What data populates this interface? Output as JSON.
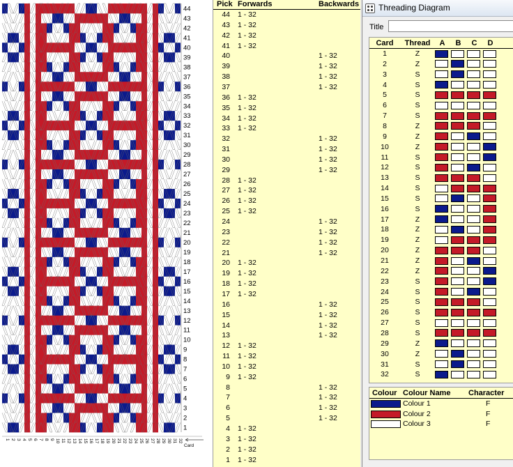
{
  "colors": {
    "navy": "#0b1a8c",
    "red": "#c41a28",
    "white": "#ffffff",
    "panel_bg": "#ffffc8"
  },
  "weave": {
    "row_labels": [
      "44",
      "43",
      "42",
      "41",
      "40",
      "39",
      "38",
      "37",
      "36",
      "35",
      "34",
      "33",
      "32",
      "31",
      "30",
      "29",
      "28",
      "27",
      "26",
      "25",
      "24",
      "23",
      "22",
      "21",
      "20",
      "19",
      "18",
      "17",
      "16",
      "15",
      "14",
      "13",
      "12",
      "11",
      "10",
      "9",
      "8",
      "7",
      "6",
      "5",
      "4",
      "3",
      "2",
      "1"
    ],
    "card_labels": [
      "1",
      "2",
      "3",
      "4",
      "5",
      "6",
      "7",
      "8",
      "9",
      "10",
      "11",
      "12",
      "13",
      "14",
      "15",
      "16",
      "17",
      "18",
      "19",
      "20",
      "21",
      "22",
      "23",
      "24",
      "25",
      "26",
      "27",
      "28",
      "29",
      "30",
      "31",
      "32"
    ],
    "card_axis_label": "Card"
  },
  "turning": {
    "headers": {
      "pick": "Pick",
      "forwards": "Forwards",
      "backwards": "Backwards"
    },
    "rows": [
      {
        "pick": "44",
        "forwards": "1 - 32",
        "backwards": ""
      },
      {
        "pick": "43",
        "forwards": "1 - 32",
        "backwards": ""
      },
      {
        "pick": "42",
        "forwards": "1 - 32",
        "backwards": ""
      },
      {
        "pick": "41",
        "forwards": "1 - 32",
        "backwards": ""
      },
      {
        "pick": "40",
        "forwards": "",
        "backwards": "1 - 32"
      },
      {
        "pick": "39",
        "forwards": "",
        "backwards": "1 - 32"
      },
      {
        "pick": "38",
        "forwards": "",
        "backwards": "1 - 32"
      },
      {
        "pick": "37",
        "forwards": "",
        "backwards": "1 - 32"
      },
      {
        "pick": "36",
        "forwards": "1 - 32",
        "backwards": ""
      },
      {
        "pick": "35",
        "forwards": "1 - 32",
        "backwards": ""
      },
      {
        "pick": "34",
        "forwards": "1 - 32",
        "backwards": ""
      },
      {
        "pick": "33",
        "forwards": "1 - 32",
        "backwards": ""
      },
      {
        "pick": "32",
        "forwards": "",
        "backwards": "1 - 32"
      },
      {
        "pick": "31",
        "forwards": "",
        "backwards": "1 - 32"
      },
      {
        "pick": "30",
        "forwards": "",
        "backwards": "1 - 32"
      },
      {
        "pick": "29",
        "forwards": "",
        "backwards": "1 - 32"
      },
      {
        "pick": "28",
        "forwards": "1 - 32",
        "backwards": ""
      },
      {
        "pick": "27",
        "forwards": "1 - 32",
        "backwards": ""
      },
      {
        "pick": "26",
        "forwards": "1 - 32",
        "backwards": ""
      },
      {
        "pick": "25",
        "forwards": "1 - 32",
        "backwards": ""
      },
      {
        "pick": "24",
        "forwards": "",
        "backwards": "1 - 32"
      },
      {
        "pick": "23",
        "forwards": "",
        "backwards": "1 - 32"
      },
      {
        "pick": "22",
        "forwards": "",
        "backwards": "1 - 32"
      },
      {
        "pick": "21",
        "forwards": "",
        "backwards": "1 - 32"
      },
      {
        "pick": "20",
        "forwards": "1 - 32",
        "backwards": ""
      },
      {
        "pick": "19",
        "forwards": "1 - 32",
        "backwards": ""
      },
      {
        "pick": "18",
        "forwards": "1 - 32",
        "backwards": ""
      },
      {
        "pick": "17",
        "forwards": "1 - 32",
        "backwards": ""
      },
      {
        "pick": "16",
        "forwards": "",
        "backwards": "1 - 32"
      },
      {
        "pick": "15",
        "forwards": "",
        "backwards": "1 - 32"
      },
      {
        "pick": "14",
        "forwards": "",
        "backwards": "1 - 32"
      },
      {
        "pick": "13",
        "forwards": "",
        "backwards": "1 - 32"
      },
      {
        "pick": "12",
        "forwards": "1 - 32",
        "backwards": ""
      },
      {
        "pick": "11",
        "forwards": "1 - 32",
        "backwards": ""
      },
      {
        "pick": "10",
        "forwards": "1 - 32",
        "backwards": ""
      },
      {
        "pick": "9",
        "forwards": "1 - 32",
        "backwards": ""
      },
      {
        "pick": "8",
        "forwards": "",
        "backwards": "1 - 32"
      },
      {
        "pick": "7",
        "forwards": "",
        "backwards": "1 - 32"
      },
      {
        "pick": "6",
        "forwards": "",
        "backwards": "1 - 32"
      },
      {
        "pick": "5",
        "forwards": "",
        "backwards": "1 - 32"
      },
      {
        "pick": "4",
        "forwards": "1 - 32",
        "backwards": ""
      },
      {
        "pick": "3",
        "forwards": "1 - 32",
        "backwards": ""
      },
      {
        "pick": "2",
        "forwards": "1 - 32",
        "backwards": ""
      },
      {
        "pick": "1",
        "forwards": "1 - 32",
        "backwards": ""
      }
    ]
  },
  "threading": {
    "window_title": "Threading Diagram",
    "title_label": "Title",
    "title_value": "",
    "headers": {
      "card": "Card",
      "thread": "Thread",
      "a": "A",
      "b": "B",
      "c": "C",
      "d": "D"
    },
    "cards": [
      {
        "card": "1",
        "thread": "Z",
        "holes": [
          "navy",
          "white",
          "white",
          "white"
        ]
      },
      {
        "card": "2",
        "thread": "Z",
        "holes": [
          "white",
          "navy",
          "white",
          "white"
        ]
      },
      {
        "card": "3",
        "thread": "S",
        "holes": [
          "white",
          "navy",
          "white",
          "white"
        ]
      },
      {
        "card": "4",
        "thread": "S",
        "holes": [
          "navy",
          "white",
          "white",
          "white"
        ]
      },
      {
        "card": "5",
        "thread": "S",
        "holes": [
          "red",
          "red",
          "red",
          "red"
        ]
      },
      {
        "card": "6",
        "thread": "S",
        "holes": [
          "white",
          "white",
          "white",
          "white"
        ]
      },
      {
        "card": "7",
        "thread": "S",
        "holes": [
          "red",
          "red",
          "red",
          "red"
        ]
      },
      {
        "card": "8",
        "thread": "Z",
        "holes": [
          "red",
          "red",
          "red",
          "white"
        ]
      },
      {
        "card": "9",
        "thread": "Z",
        "holes": [
          "red",
          "white",
          "navy",
          "white"
        ]
      },
      {
        "card": "10",
        "thread": "Z",
        "holes": [
          "red",
          "white",
          "white",
          "navy"
        ]
      },
      {
        "card": "11",
        "thread": "S",
        "holes": [
          "red",
          "white",
          "white",
          "navy"
        ]
      },
      {
        "card": "12",
        "thread": "S",
        "holes": [
          "red",
          "white",
          "navy",
          "white"
        ]
      },
      {
        "card": "13",
        "thread": "S",
        "holes": [
          "red",
          "red",
          "red",
          "white"
        ]
      },
      {
        "card": "14",
        "thread": "S",
        "holes": [
          "white",
          "red",
          "red",
          "red"
        ]
      },
      {
        "card": "15",
        "thread": "S",
        "holes": [
          "white",
          "navy",
          "white",
          "red"
        ]
      },
      {
        "card": "16",
        "thread": "S",
        "holes": [
          "navy",
          "white",
          "white",
          "red"
        ]
      },
      {
        "card": "17",
        "thread": "Z",
        "holes": [
          "navy",
          "white",
          "white",
          "red"
        ]
      },
      {
        "card": "18",
        "thread": "Z",
        "holes": [
          "white",
          "navy",
          "white",
          "red"
        ]
      },
      {
        "card": "19",
        "thread": "Z",
        "holes": [
          "white",
          "red",
          "red",
          "red"
        ]
      },
      {
        "card": "20",
        "thread": "Z",
        "holes": [
          "red",
          "red",
          "red",
          "white"
        ]
      },
      {
        "card": "21",
        "thread": "Z",
        "holes": [
          "red",
          "white",
          "navy",
          "white"
        ]
      },
      {
        "card": "22",
        "thread": "Z",
        "holes": [
          "red",
          "white",
          "white",
          "navy"
        ]
      },
      {
        "card": "23",
        "thread": "S",
        "holes": [
          "red",
          "white",
          "white",
          "navy"
        ]
      },
      {
        "card": "24",
        "thread": "S",
        "holes": [
          "red",
          "white",
          "navy",
          "white"
        ]
      },
      {
        "card": "25",
        "thread": "S",
        "holes": [
          "red",
          "red",
          "red",
          "white"
        ]
      },
      {
        "card": "26",
        "thread": "S",
        "holes": [
          "red",
          "red",
          "red",
          "red"
        ]
      },
      {
        "card": "27",
        "thread": "S",
        "holes": [
          "white",
          "white",
          "white",
          "white"
        ]
      },
      {
        "card": "28",
        "thread": "S",
        "holes": [
          "red",
          "red",
          "red",
          "red"
        ]
      },
      {
        "card": "29",
        "thread": "Z",
        "holes": [
          "navy",
          "white",
          "white",
          "white"
        ]
      },
      {
        "card": "30",
        "thread": "Z",
        "holes": [
          "white",
          "navy",
          "white",
          "white"
        ]
      },
      {
        "card": "31",
        "thread": "S",
        "holes": [
          "white",
          "navy",
          "white",
          "white"
        ]
      },
      {
        "card": "32",
        "thread": "S",
        "holes": [
          "navy",
          "white",
          "white",
          "white"
        ]
      }
    ]
  },
  "colours": {
    "headers": {
      "colour": "Colour",
      "name": "Colour Name",
      "character": "Character"
    },
    "rows": [
      {
        "key": "navy",
        "name": "Colour 1",
        "character": "F"
      },
      {
        "key": "red",
        "name": "Colour 2",
        "character": "F"
      },
      {
        "key": "white",
        "name": "Colour 3",
        "character": "F"
      }
    ]
  }
}
